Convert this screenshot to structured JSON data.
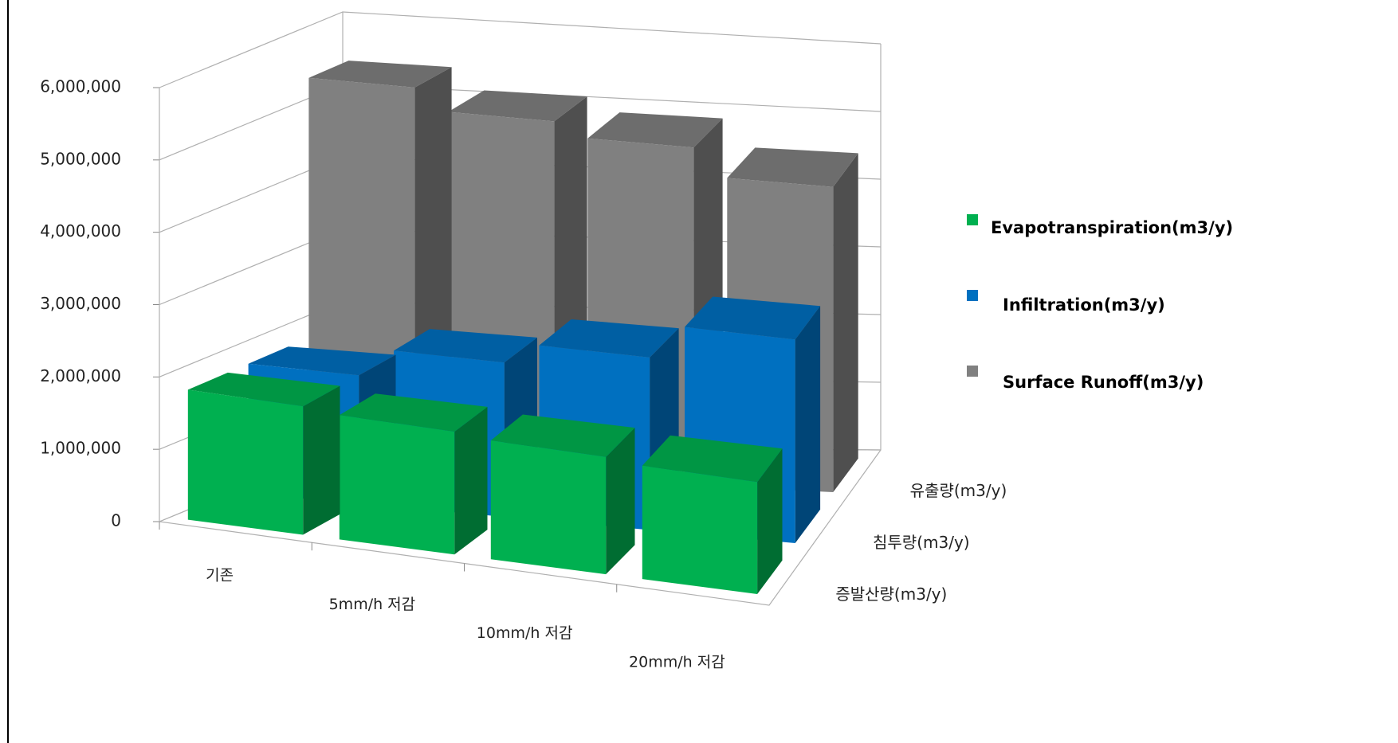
{
  "chart_data": {
    "type": "bar3d",
    "categories": [
      "기존",
      "5mm/h 저감",
      "10mm/h 저감",
      "20mm/h 저감"
    ],
    "depth_categories": [
      "증발산량(m3/y)",
      "침투량(m3/y)",
      "유출량(m3/y)"
    ],
    "series": [
      {
        "name": "Evapotranspiration(m3/y)",
        "color": "#00b050",
        "values": [
          1800000,
          1750000,
          1700000,
          1650000
        ]
      },
      {
        "name": "Infiltration(m3/y)",
        "color": "#0070c0",
        "values": [
          1800000,
          2200000,
          2500000,
          3000000
        ]
      },
      {
        "name": "Surface Runoff(m3/y)",
        "color": "#808080",
        "values": [
          5400000,
          5100000,
          4900000,
          4500000
        ]
      }
    ],
    "ylim": [
      0,
      6000000
    ],
    "yticks": [
      0,
      {
        "value": 1000000,
        "label": "1,000,000"
      },
      {
        "value": 2000000,
        "label": "2,000,000"
      },
      {
        "value": 3000000,
        "label": "3,000,000"
      },
      {
        "value": 4000000,
        "label": "4,000,000"
      },
      {
        "value": 5000000,
        "label": "5,000,000"
      },
      {
        "value": 6000000,
        "label": "6,000,000"
      }
    ],
    "grid": true,
    "legend": "right"
  }
}
